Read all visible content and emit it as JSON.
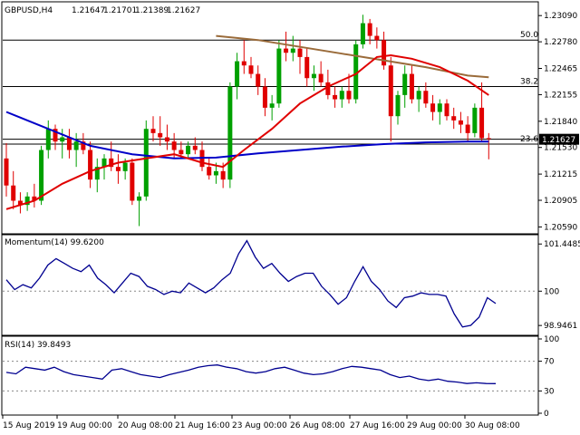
{
  "chart_data": {
    "type": "candlestick",
    "title": "GBPUSD,H4",
    "ohlc_header": [
      "1.21647",
      "1.21701",
      "1.21389",
      "1.21627"
    ],
    "current_price": "1.21627",
    "colors": {
      "bull": "#00a000",
      "bear": "#e00000",
      "ma_fast": "#e00000",
      "ma_mid": "#0000c8",
      "ma_slow": "#9a6b3a",
      "indicator": "#000090",
      "price_tag_bg": "#000000",
      "price_tag_fg": "#ffffff"
    },
    "price_axis": {
      "ylim": [
        1.2053,
        1.2321
      ],
      "ticks": [
        "1.23090",
        "1.22780",
        "1.22465",
        "1.22155",
        "1.21840",
        "1.21530",
        "1.21215",
        "1.20905",
        "1.20590"
      ]
    },
    "fib_levels": [
      {
        "label": "50.0",
        "value": 1.228
      },
      {
        "label": "38.2",
        "value": 1.2225
      },
      {
        "label": "23.6",
        "value": 1.2157
      }
    ],
    "horizontal_lines": [
      1.21627
    ],
    "x_axis_labels": [
      "15 Aug 2019",
      "19 Aug 00:00",
      "20 Aug 08:00",
      "21 Aug 16:00",
      "23 Aug 00:00",
      "26 Aug 08:00",
      "27 Aug 16:00",
      "29 Aug 00:00",
      "30 Aug 08:00"
    ],
    "candles": [
      [
        1.214,
        1.2158,
        1.2095,
        1.2108
      ],
      [
        1.2108,
        1.2125,
        1.208,
        1.209
      ],
      [
        1.209,
        1.21,
        1.2075,
        1.2085
      ],
      [
        1.2085,
        1.21,
        1.2078,
        1.2095
      ],
      [
        1.2095,
        1.211,
        1.2082,
        1.209
      ],
      [
        1.209,
        1.2155,
        1.2085,
        1.215
      ],
      [
        1.215,
        1.2185,
        1.214,
        1.2175
      ],
      [
        1.2175,
        1.218,
        1.215,
        1.216
      ],
      [
        1.216,
        1.2175,
        1.214,
        1.2165
      ],
      [
        1.2165,
        1.2175,
        1.214,
        1.215
      ],
      [
        1.215,
        1.217,
        1.213,
        1.216
      ],
      [
        1.216,
        1.217,
        1.2145,
        1.215
      ],
      [
        1.215,
        1.216,
        1.2105,
        1.2115
      ],
      [
        1.2115,
        1.214,
        1.21,
        1.213
      ],
      [
        1.213,
        1.2145,
        1.2115,
        1.214
      ],
      [
        1.214,
        1.216,
        1.2125,
        1.213
      ],
      [
        1.213,
        1.2145,
        1.211,
        1.2125
      ],
      [
        1.2125,
        1.214,
        1.2115,
        1.2135
      ],
      [
        1.2135,
        1.214,
        1.2085,
        1.209
      ],
      [
        1.209,
        1.21,
        1.206,
        1.2095
      ],
      [
        1.2095,
        1.2185,
        1.209,
        1.2175
      ],
      [
        1.2175,
        1.219,
        1.216,
        1.217
      ],
      [
        1.217,
        1.219,
        1.2155,
        1.2165
      ],
      [
        1.2165,
        1.218,
        1.215,
        1.216
      ],
      [
        1.216,
        1.217,
        1.214,
        1.215
      ],
      [
        1.215,
        1.216,
        1.214,
        1.2145
      ],
      [
        1.2145,
        1.216,
        1.214,
        1.2155
      ],
      [
        1.2155,
        1.2165,
        1.2145,
        1.215
      ],
      [
        1.215,
        1.216,
        1.2125,
        1.213
      ],
      [
        1.213,
        1.214,
        1.2115,
        1.212
      ],
      [
        1.212,
        1.2135,
        1.211,
        1.2125
      ],
      [
        1.2125,
        1.2135,
        1.2105,
        1.2115
      ],
      [
        1.2115,
        1.223,
        1.2105,
        1.2225
      ],
      [
        1.2225,
        1.2265,
        1.221,
        1.2255
      ],
      [
        1.2255,
        1.228,
        1.224,
        1.225
      ],
      [
        1.225,
        1.226,
        1.2235,
        1.224
      ],
      [
        1.224,
        1.225,
        1.2215,
        1.2225
      ],
      [
        1.2225,
        1.2235,
        1.219,
        1.22
      ],
      [
        1.22,
        1.2215,
        1.2185,
        1.2205
      ],
      [
        1.2205,
        1.228,
        1.22,
        1.227
      ],
      [
        1.227,
        1.229,
        1.2255,
        1.2265
      ],
      [
        1.2265,
        1.2285,
        1.2255,
        1.227
      ],
      [
        1.227,
        1.228,
        1.224,
        1.226
      ],
      [
        1.226,
        1.227,
        1.2225,
        1.2235
      ],
      [
        1.2235,
        1.225,
        1.222,
        1.224
      ],
      [
        1.224,
        1.2255,
        1.2225,
        1.223
      ],
      [
        1.223,
        1.2245,
        1.221,
        1.2215
      ],
      [
        1.2215,
        1.2225,
        1.22,
        1.221
      ],
      [
        1.221,
        1.2225,
        1.22,
        1.222
      ],
      [
        1.222,
        1.224,
        1.2205,
        1.221
      ],
      [
        1.221,
        1.228,
        1.2205,
        1.2275
      ],
      [
        1.2275,
        1.231,
        1.227,
        1.23
      ],
      [
        1.23,
        1.2305,
        1.2275,
        1.2285
      ],
      [
        1.2285,
        1.2295,
        1.227,
        1.228
      ],
      [
        1.228,
        1.229,
        1.2245,
        1.225
      ],
      [
        1.225,
        1.226,
        1.216,
        1.219
      ],
      [
        1.219,
        1.222,
        1.218,
        1.2215
      ],
      [
        1.2215,
        1.225,
        1.22,
        1.224
      ],
      [
        1.224,
        1.225,
        1.2205,
        1.221
      ],
      [
        1.221,
        1.2225,
        1.2195,
        1.222
      ],
      [
        1.222,
        1.223,
        1.22,
        1.2205
      ],
      [
        1.2205,
        1.2215,
        1.2185,
        1.2195
      ],
      [
        1.2195,
        1.221,
        1.218,
        1.2205
      ],
      [
        1.2205,
        1.221,
        1.2185,
        1.219
      ],
      [
        1.219,
        1.22,
        1.2175,
        1.2185
      ],
      [
        1.2185,
        1.2195,
        1.217,
        1.218
      ],
      [
        1.218,
        1.219,
        1.216,
        1.217
      ],
      [
        1.217,
        1.2205,
        1.2165,
        1.22
      ],
      [
        1.22,
        1.223,
        1.216,
        1.2164
      ],
      [
        1.2164,
        1.217,
        1.2139,
        1.2163
      ]
    ],
    "ma_fast": [
      [
        0,
        1.208
      ],
      [
        4,
        1.209
      ],
      [
        8,
        1.211
      ],
      [
        12,
        1.2125
      ],
      [
        16,
        1.2135
      ],
      [
        20,
        1.214
      ],
      [
        24,
        1.2145
      ],
      [
        28,
        1.2135
      ],
      [
        31,
        1.213
      ],
      [
        34,
        1.215
      ],
      [
        38,
        1.2175
      ],
      [
        42,
        1.2205
      ],
      [
        46,
        1.2225
      ],
      [
        50,
        1.224
      ],
      [
        53,
        1.226
      ],
      [
        55,
        1.2262
      ],
      [
        58,
        1.2258
      ],
      [
        62,
        1.2248
      ],
      [
        66,
        1.2232
      ],
      [
        69,
        1.2215
      ]
    ],
    "ma_mid": [
      [
        0,
        1.2195
      ],
      [
        6,
        1.2175
      ],
      [
        12,
        1.2155
      ],
      [
        18,
        1.2145
      ],
      [
        24,
        1.214
      ],
      [
        30,
        1.2141
      ],
      [
        36,
        1.2146
      ],
      [
        42,
        1.215
      ],
      [
        48,
        1.2154
      ],
      [
        54,
        1.2157
      ],
      [
        60,
        1.2159
      ],
      [
        66,
        1.216
      ],
      [
        69,
        1.216
      ]
    ],
    "ma_slow": [
      [
        30,
        1.2285
      ],
      [
        36,
        1.228
      ],
      [
        42,
        1.2272
      ],
      [
        48,
        1.2264
      ],
      [
        54,
        1.2256
      ],
      [
        60,
        1.2248
      ],
      [
        66,
        1.2238
      ],
      [
        69,
        1.2236
      ]
    ],
    "momentum": {
      "label": "Momentum(14) 99.6200",
      "ticks": [
        "101.4485",
        "100",
        "98.9461"
      ],
      "ylim": [
        98.7,
        101.65
      ],
      "ref": 100,
      "values": [
        100.35,
        100.05,
        100.2,
        100.1,
        100.4,
        100.8,
        101.0,
        100.85,
        100.7,
        100.6,
        100.8,
        100.4,
        100.2,
        99.95,
        100.25,
        100.55,
        100.45,
        100.15,
        100.05,
        99.9,
        100.0,
        99.95,
        100.25,
        100.1,
        99.95,
        100.1,
        100.35,
        100.55,
        101.15,
        101.55,
        101.05,
        100.7,
        100.85,
        100.55,
        100.3,
        100.45,
        100.55,
        100.55,
        100.15,
        99.9,
        99.6,
        99.8,
        100.3,
        100.75,
        100.3,
        100.05,
        99.7,
        99.5,
        99.8,
        99.85,
        99.95,
        99.9,
        99.9,
        99.85,
        99.3,
        98.9,
        98.95,
        99.2,
        99.8,
        99.62
      ]
    },
    "rsi": {
      "label": "RSI(14) 39.8493",
      "ticks": [
        "100",
        "70",
        "30",
        "0"
      ],
      "ylim": [
        0,
        100
      ],
      "levels": [
        70,
        30
      ],
      "values": [
        55,
        53,
        62,
        60,
        58,
        62,
        56,
        52,
        50,
        48,
        46,
        58,
        60,
        56,
        52,
        50,
        48,
        52,
        55,
        58,
        62,
        64,
        65,
        62,
        60,
        56,
        54,
        56,
        60,
        62,
        58,
        54,
        52,
        53,
        56,
        60,
        63,
        62,
        60,
        58,
        52,
        48,
        50,
        46,
        44,
        46,
        43,
        42,
        40,
        41,
        40,
        39.85
      ]
    }
  }
}
